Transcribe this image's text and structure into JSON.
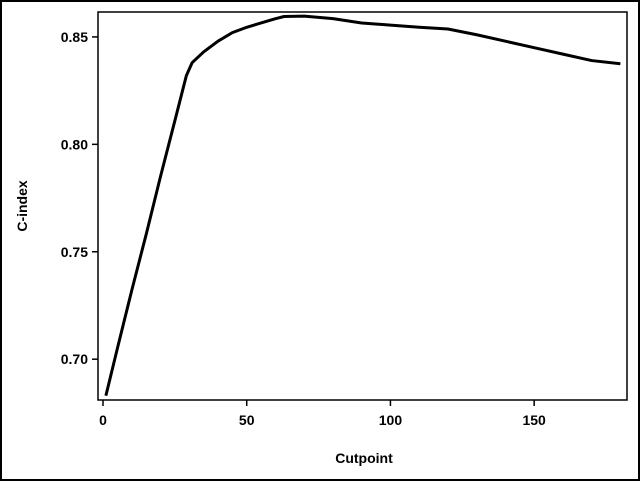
{
  "chart_data": {
    "type": "line",
    "x_label": "Cutpoint",
    "y_label": "C-index",
    "x": [
      1,
      5,
      10,
      15,
      20,
      25,
      29,
      31,
      35,
      40,
      45,
      50,
      55,
      60,
      63,
      70,
      80,
      90,
      100,
      110,
      120,
      130,
      140,
      150,
      160,
      170,
      180
    ],
    "values": [
      0.683,
      0.705,
      0.732,
      0.758,
      0.785,
      0.811,
      0.832,
      0.838,
      0.843,
      0.848,
      0.852,
      0.8545,
      0.8565,
      0.8585,
      0.8595,
      0.8597,
      0.8585,
      0.8565,
      0.8555,
      0.8545,
      0.8537,
      0.851,
      0.848,
      0.845,
      0.842,
      0.839,
      0.8375
    ],
    "color": "#000000",
    "xlim": [
      -1.74,
      182.3
    ],
    "xticks": [
      0,
      50,
      100,
      150
    ],
    "ylim": [
      0.681,
      0.8616
    ],
    "yticks": [
      {
        "value": 0.7,
        "label": "0.70"
      },
      0.75,
      {
        "value": 0.8,
        "label": "0.80"
      },
      0.85
    ]
  }
}
